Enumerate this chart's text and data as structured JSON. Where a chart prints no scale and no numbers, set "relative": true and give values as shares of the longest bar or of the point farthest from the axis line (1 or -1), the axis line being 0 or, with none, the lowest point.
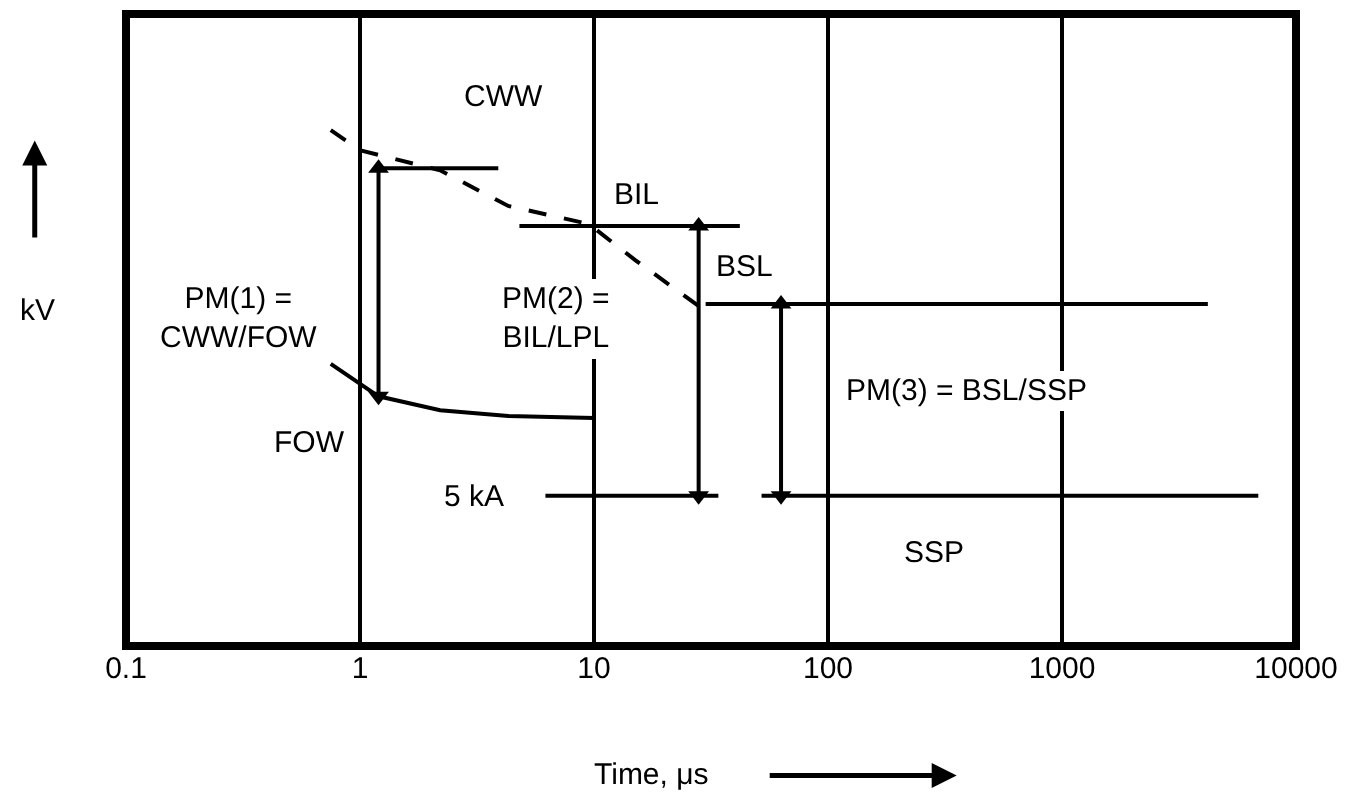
{
  "chart_data": {
    "type": "line",
    "relative": true,
    "xlabel": "Time, μs",
    "ylabel": "kV",
    "log": "x",
    "xlim": [
      0.1,
      10000
    ],
    "xticks": [
      0.1,
      1,
      10,
      100,
      1000,
      10000
    ],
    "grid": "x",
    "series": [
      {
        "color": "#000000",
        "line_style": "dashed",
        "x": [
          0.75,
          1,
          2.2,
          4.3,
          9.5,
          15,
          28
        ],
        "values": [
          1.0,
          0.961,
          0.922,
          0.853,
          0.818,
          0.748,
          0.659
        ]
      },
      {
        "color": "#000000",
        "x": [
          0.75,
          1.2,
          2.2,
          4.3,
          10
        ],
        "values": [
          0.547,
          0.484,
          0.457,
          0.446,
          0.442
        ]
      },
      {
        "color": "#000000",
        "x": [
          1.16,
          3.9
        ],
        "values": [
          0.926,
          0.926
        ]
      },
      {
        "color": "#000000",
        "x": [
          4.8,
          42
        ],
        "values": [
          0.814,
          0.814
        ]
      },
      {
        "color": "#000000",
        "x": [
          30,
          4200
        ],
        "values": [
          0.663,
          0.663
        ]
      },
      {
        "color": "#000000",
        "x": [
          6.2,
          34
        ],
        "values": [
          0.291,
          0.291
        ]
      },
      {
        "color": "#000000",
        "x": [
          52,
          6900
        ],
        "values": [
          0.291,
          0.291
        ]
      },
      {
        "color": "#000000",
        "marker": "triangle",
        "x": [
          1.2,
          1.2
        ],
        "values": [
          0.926,
          0.484
        ]
      },
      {
        "color": "#000000",
        "marker": "triangle",
        "x": [
          28,
          28
        ],
        "values": [
          0.814,
          0.291
        ]
      },
      {
        "color": "#000000",
        "marker": "triangle",
        "x": [
          63,
          63
        ],
        "values": [
          0.663,
          0.291
        ]
      }
    ],
    "annotations": [
      "CWW",
      "BIL",
      "BSL",
      "PM(1) =\nCWW/FOW",
      "PM(2) =\nBIL/LPL",
      "PM(3) = BSL/SSP",
      "FOW",
      "5 kA",
      "SSP"
    ]
  }
}
